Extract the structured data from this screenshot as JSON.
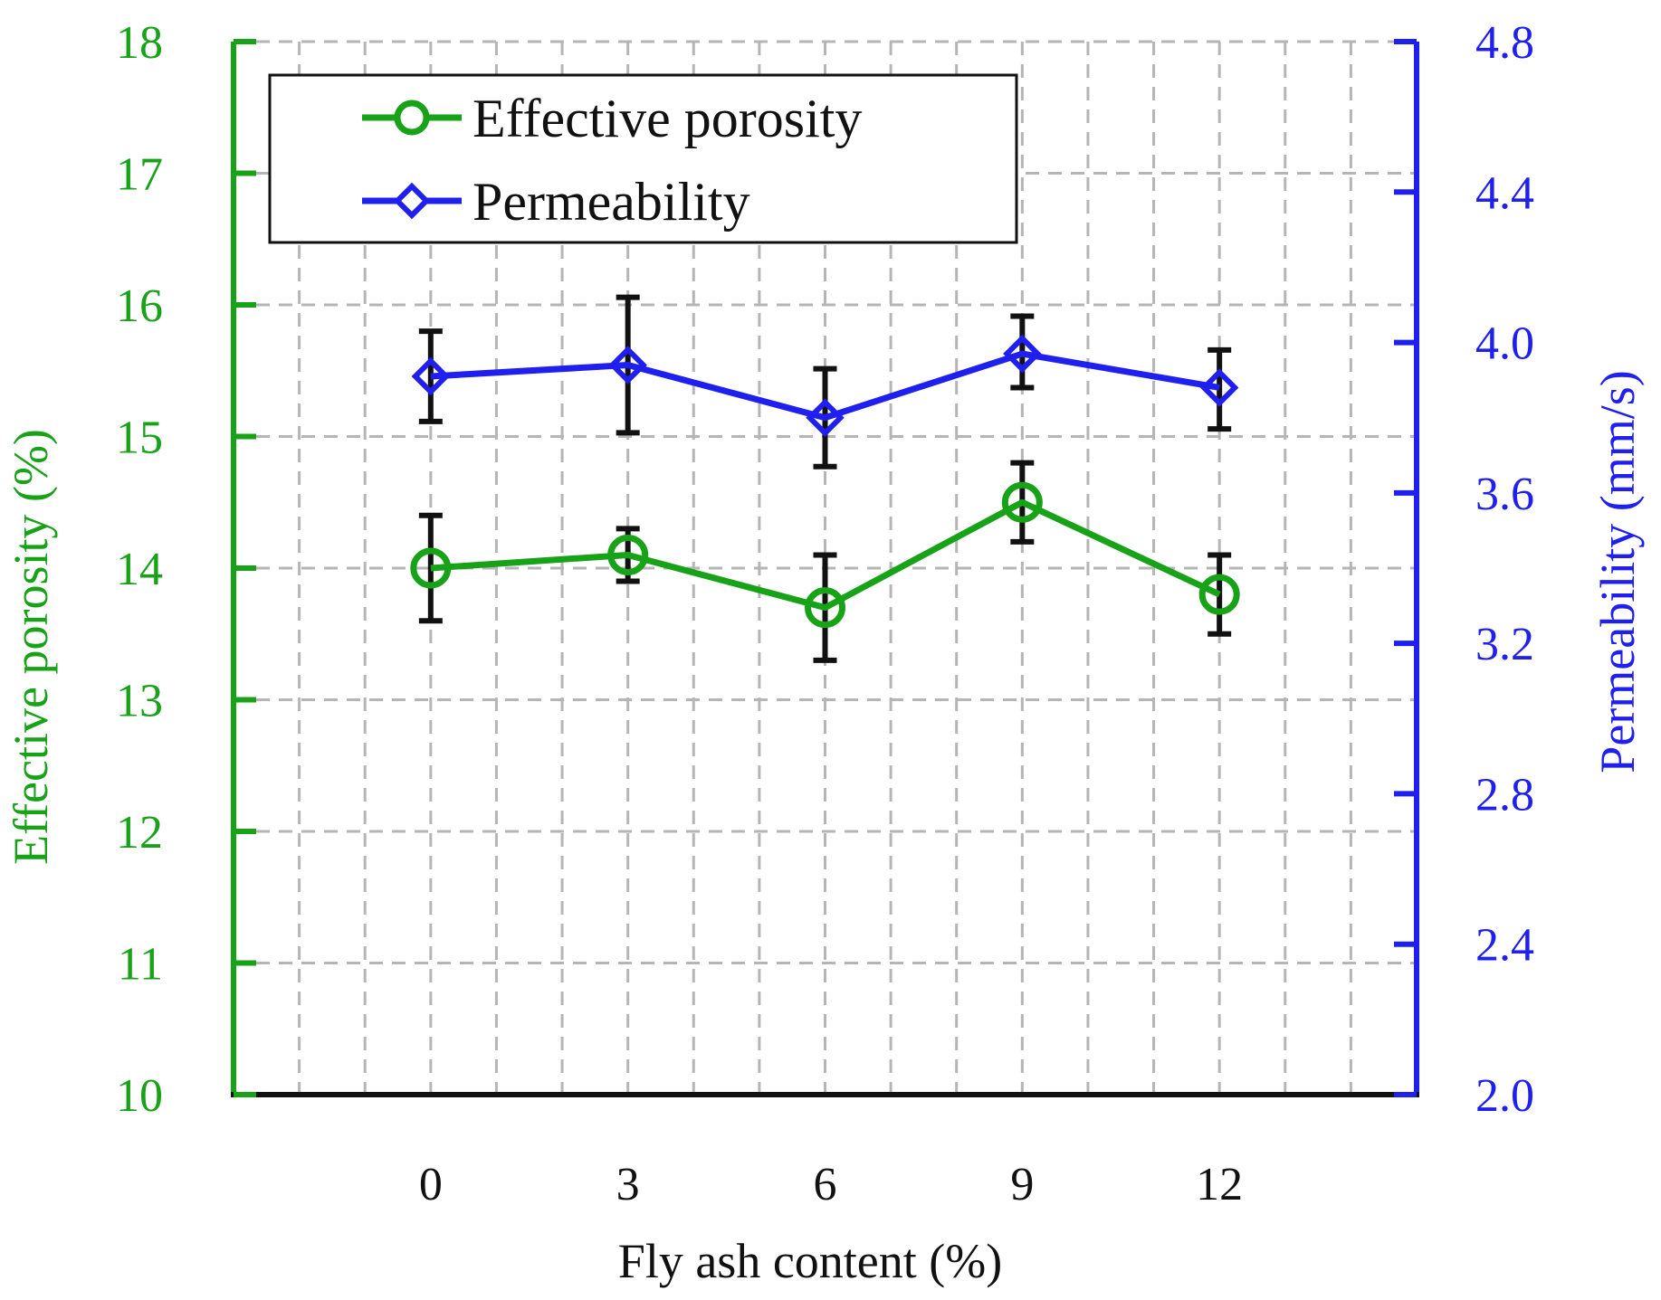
{
  "chart_data": {
    "type": "line",
    "title": "",
    "xlabel": "Fly ash content (%)",
    "ylabel_left": "Effective porosity (%)",
    "ylabel_right": "Permeability (mm/s)",
    "x": [
      0,
      3,
      6,
      9,
      12
    ],
    "x_tick_labels": [
      "0",
      "3",
      "6",
      "9",
      "12"
    ],
    "xlim": [
      -3,
      15
    ],
    "ylim_left": [
      10,
      18
    ],
    "y_ticks_left": [
      10,
      11,
      12,
      13,
      14,
      15,
      16,
      17,
      18
    ],
    "y_tick_labels_left": [
      "10",
      "11",
      "12",
      "13",
      "14",
      "15",
      "16",
      "17",
      "18"
    ],
    "ylim_right": [
      2.0,
      4.8
    ],
    "y_ticks_right": [
      2.0,
      2.4,
      2.8,
      3.2,
      3.6,
      4.0,
      4.4,
      4.8
    ],
    "y_tick_labels_right": [
      "2.0",
      "2.4",
      "2.8",
      "3.2",
      "3.6",
      "4.0",
      "4.4",
      "4.8"
    ],
    "grid": true,
    "legend_position": "top-left",
    "series": [
      {
        "name": "Effective porosity",
        "axis": "left",
        "marker": "circle",
        "color": "#17a217",
        "values": [
          14.0,
          14.1,
          13.7,
          14.5,
          13.8
        ],
        "error_low": [
          13.6,
          13.9,
          13.3,
          14.2,
          13.5
        ],
        "error_high": [
          14.4,
          14.3,
          14.1,
          14.8,
          14.1
        ]
      },
      {
        "name": "Permeability",
        "axis": "right",
        "marker": "diamond",
        "color": "#2020ee",
        "values": [
          3.91,
          3.94,
          3.8,
          3.97,
          3.88
        ],
        "error_low": [
          3.79,
          3.76,
          3.67,
          3.88,
          3.77
        ],
        "error_high": [
          4.03,
          4.12,
          3.93,
          4.07,
          3.98
        ]
      }
    ]
  },
  "colors": {
    "left_axis": "#17a217",
    "right_axis": "#2020ee",
    "bottom_axis": "#111111",
    "grid": "#b5b5b5",
    "error_bar": "#111111"
  }
}
